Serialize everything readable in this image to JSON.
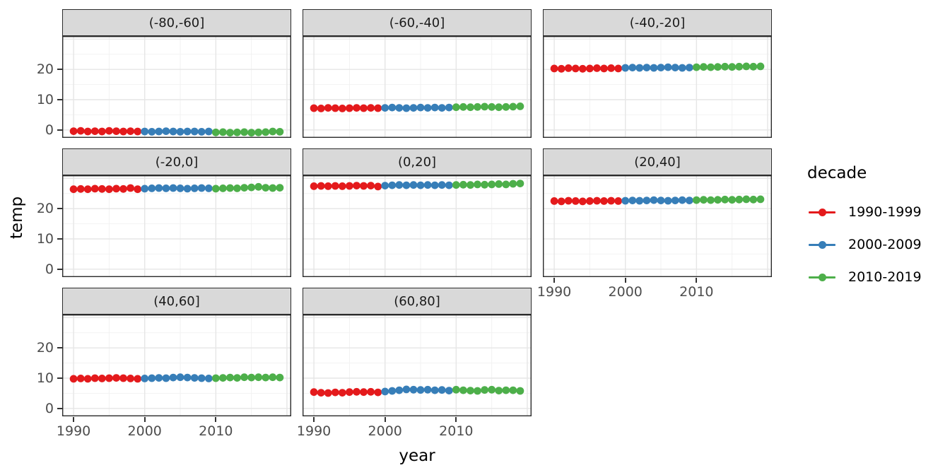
{
  "chart_data": {
    "type": "scatter",
    "xlabel": "year",
    "ylabel": "temp",
    "x_ticks": [
      "1990",
      "2000",
      "2010"
    ],
    "y_ticks": [
      "0",
      "10",
      "20"
    ],
    "x_range": [
      1988.4,
      2020.6
    ],
    "y_range": [
      -2.6,
      31
    ],
    "x_grid_major": [
      1990,
      2000,
      2010,
      2020
    ],
    "x_grid_minor": [
      1995,
      2005,
      2015
    ],
    "y_grid_major": [
      0,
      10,
      20,
      30
    ],
    "y_grid_minor": [
      5,
      15,
      25
    ],
    "grid": "on",
    "legend": {
      "title": "decade",
      "position": "right",
      "entries": [
        {
          "label": "1990-1999",
          "color": "#E41A1C"
        },
        {
          "label": "2000-2009",
          "color": "#377EB8"
        },
        {
          "label": "2010-2019",
          "color": "#4DAF4A"
        }
      ]
    },
    "panels": [
      {
        "label": "(-80,-60]",
        "series": [
          {
            "decade": "1990-1999",
            "start_year": 1990,
            "temps": [
              -0.4,
              -0.3,
              -0.5,
              -0.4,
              -0.5,
              -0.3,
              -0.4,
              -0.5,
              -0.4,
              -0.5
            ]
          },
          {
            "decade": "2000-2009",
            "start_year": 2000,
            "temps": [
              -0.5,
              -0.6,
              -0.5,
              -0.4,
              -0.5,
              -0.6,
              -0.5,
              -0.5,
              -0.6,
              -0.5
            ]
          },
          {
            "decade": "2010-2019",
            "start_year": 2010,
            "temps": [
              -0.8,
              -0.7,
              -0.9,
              -0.8,
              -0.7,
              -0.9,
              -0.8,
              -0.7,
              -0.5,
              -0.6
            ]
          }
        ]
      },
      {
        "label": "(-60,-40]",
        "series": [
          {
            "decade": "1990-1999",
            "start_year": 1990,
            "temps": [
              7.2,
              7.1,
              7.3,
              7.2,
              7.1,
              7.2,
              7.3,
              7.2,
              7.3,
              7.2
            ]
          },
          {
            "decade": "2000-2009",
            "start_year": 2000,
            "temps": [
              7.3,
              7.4,
              7.3,
              7.2,
              7.3,
              7.4,
              7.3,
              7.4,
              7.3,
              7.4
            ]
          },
          {
            "decade": "2010-2019",
            "start_year": 2010,
            "temps": [
              7.5,
              7.6,
              7.5,
              7.6,
              7.7,
              7.6,
              7.5,
              7.6,
              7.7,
              7.8
            ]
          }
        ]
      },
      {
        "label": "(-40,-20]",
        "series": [
          {
            "decade": "1990-1999",
            "start_year": 1990,
            "temps": [
              20.3,
              20.2,
              20.4,
              20.3,
              20.2,
              20.3,
              20.4,
              20.3,
              20.4,
              20.3
            ]
          },
          {
            "decade": "2000-2009",
            "start_year": 2000,
            "temps": [
              20.5,
              20.6,
              20.5,
              20.6,
              20.5,
              20.6,
              20.7,
              20.6,
              20.5,
              20.6
            ]
          },
          {
            "decade": "2010-2019",
            "start_year": 2010,
            "temps": [
              20.7,
              20.8,
              20.7,
              20.8,
              20.9,
              20.8,
              20.9,
              21.0,
              20.9,
              21.0
            ]
          }
        ]
      },
      {
        "label": "(-20,0]",
        "series": [
          {
            "decade": "1990-1999",
            "start_year": 1990,
            "temps": [
              26.4,
              26.5,
              26.4,
              26.6,
              26.5,
              26.4,
              26.6,
              26.5,
              26.8,
              26.4
            ]
          },
          {
            "decade": "2000-2009",
            "start_year": 2000,
            "temps": [
              26.6,
              26.7,
              26.8,
              26.7,
              26.8,
              26.7,
              26.6,
              26.7,
              26.8,
              26.7
            ]
          },
          {
            "decade": "2010-2019",
            "start_year": 2010,
            "temps": [
              26.6,
              26.7,
              26.8,
              26.7,
              26.9,
              27.0,
              27.2,
              26.9,
              26.8,
              26.9
            ]
          }
        ]
      },
      {
        "label": "(0,20]",
        "series": [
          {
            "decade": "1990-1999",
            "start_year": 1990,
            "temps": [
              27.4,
              27.5,
              27.4,
              27.5,
              27.4,
              27.5,
              27.6,
              27.5,
              27.6,
              27.3
            ]
          },
          {
            "decade": "2000-2009",
            "start_year": 2000,
            "temps": [
              27.6,
              27.7,
              27.8,
              27.7,
              27.8,
              27.7,
              27.8,
              27.7,
              27.8,
              27.7
            ]
          },
          {
            "decade": "2010-2019",
            "start_year": 2010,
            "temps": [
              27.8,
              27.9,
              27.8,
              28.0,
              27.9,
              28.0,
              28.1,
              28.0,
              28.2,
              28.3
            ]
          }
        ]
      },
      {
        "label": "(20,40]",
        "series": [
          {
            "decade": "1990-1999",
            "start_year": 1990,
            "temps": [
              22.5,
              22.4,
              22.6,
              22.5,
              22.4,
              22.5,
              22.6,
              22.5,
              22.6,
              22.5
            ]
          },
          {
            "decade": "2000-2009",
            "start_year": 2000,
            "temps": [
              22.6,
              22.7,
              22.6,
              22.7,
              22.8,
              22.7,
              22.6,
              22.7,
              22.8,
              22.7
            ]
          },
          {
            "decade": "2010-2019",
            "start_year": 2010,
            "temps": [
              22.8,
              22.9,
              22.8,
              22.9,
              23.0,
              22.9,
              23.0,
              23.1,
              23.0,
              23.1
            ]
          }
        ]
      },
      {
        "label": "(40,60]",
        "series": [
          {
            "decade": "1990-1999",
            "start_year": 1990,
            "temps": [
              9.8,
              9.9,
              9.8,
              10.0,
              9.9,
              10.0,
              10.1,
              10.0,
              9.9,
              9.8
            ]
          },
          {
            "decade": "2000-2009",
            "start_year": 2000,
            "temps": [
              9.9,
              10.0,
              10.1,
              10.0,
              10.2,
              10.3,
              10.2,
              10.1,
              10.0,
              9.9
            ]
          },
          {
            "decade": "2010-2019",
            "start_year": 2010,
            "temps": [
              10.0,
              10.1,
              10.2,
              10.1,
              10.3,
              10.2,
              10.3,
              10.2,
              10.3,
              10.2
            ]
          }
        ]
      },
      {
        "label": "(60,80]",
        "series": [
          {
            "decade": "1990-1999",
            "start_year": 1990,
            "temps": [
              5.4,
              5.2,
              5.1,
              5.3,
              5.2,
              5.4,
              5.5,
              5.4,
              5.5,
              5.3
            ]
          },
          {
            "decade": "2000-2009",
            "start_year": 2000,
            "temps": [
              5.6,
              5.8,
              6.0,
              6.3,
              6.2,
              6.1,
              6.2,
              6.0,
              6.1,
              5.9
            ]
          },
          {
            "decade": "2010-2019",
            "start_year": 2010,
            "temps": [
              6.2,
              6.0,
              5.9,
              5.8,
              6.1,
              6.2,
              5.9,
              6.0,
              6.0,
              5.8
            ]
          }
        ]
      }
    ]
  },
  "colors": {
    "strip_bg": "#D9D9D9",
    "panel_border": "#2B2B2B",
    "grid_major": "#E6E6E6",
    "grid_minor": "#F2F2F2",
    "tick_label": "#4D4D4D",
    "axis_title": "#000000",
    "background": "#FFFFFF"
  }
}
